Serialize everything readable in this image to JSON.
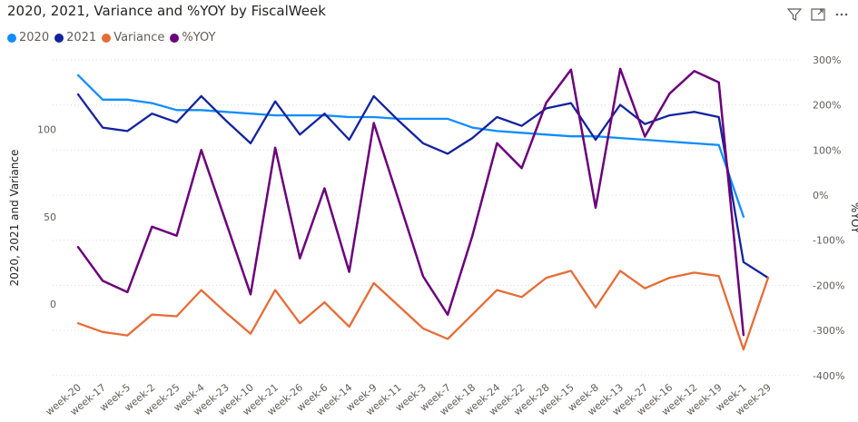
{
  "toolbar": {
    "filter_icon": "filter-icon",
    "focus_icon": "focus-mode-icon",
    "more_icon": "more-options-icon"
  },
  "chart_data": {
    "type": "line",
    "title": "2020, 2021, Variance and %YOY by FiscalWeek",
    "xlabel": "",
    "ylabel": "2020, 2021 and Variance",
    "y2label": "%YOY",
    "ylim": [
      -40,
      135
    ],
    "y2lim": [
      -400,
      300
    ],
    "yticks": [
      0,
      50,
      100
    ],
    "y2ticks": [
      "300%",
      "200%",
      "100%",
      "0%",
      "-100%",
      "-200%",
      "-300%",
      "-400%"
    ],
    "grid": "horizontal dotted",
    "legend_position": "top-left",
    "categories": [
      "week-20",
      "week-17",
      "week-5",
      "week-2",
      "week-25",
      "week-4",
      "week-23",
      "week-10",
      "week-21",
      "week-26",
      "week-6",
      "week-14",
      "week-9",
      "week-11",
      "week-3",
      "week-7",
      "week-18",
      "week-24",
      "week-22",
      "week-28",
      "week-15",
      "week-8",
      "week-13",
      "week-27",
      "week-16",
      "week-12",
      "week-19",
      "week-1",
      "week-29"
    ],
    "series": [
      {
        "name": "2020",
        "axis": "left",
        "color": "#118DFF",
        "values": [
          131,
          117,
          117,
          115,
          111,
          111,
          110,
          109,
          108,
          108,
          108,
          107,
          107,
          106,
          106,
          106,
          101,
          99,
          98,
          97,
          96,
          96,
          95,
          94,
          93,
          92,
          91,
          50,
          null
        ]
      },
      {
        "name": "2021",
        "axis": "left",
        "color": "#12239E",
        "values": [
          120,
          101,
          99,
          109,
          104,
          119,
          105,
          92,
          116,
          97,
          109,
          94,
          119,
          105,
          92,
          86,
          95,
          107,
          102,
          112,
          115,
          94,
          114,
          103,
          108,
          110,
          107,
          24,
          15
        ]
      },
      {
        "name": "Variance",
        "axis": "left",
        "color": "#E66C37",
        "values": [
          -11,
          -16,
          -18,
          -6,
          -7,
          8,
          -5,
          -17,
          8,
          -11,
          1,
          -13,
          12,
          -1,
          -14,
          -20,
          -6,
          8,
          4,
          15,
          19,
          -2,
          19,
          9,
          15,
          18,
          16,
          -26,
          15
        ]
      },
      {
        "name": "%YOY",
        "axis": "right",
        "color": "#6B007B",
        "values": [
          -115,
          -190,
          -215,
          -70,
          -90,
          100,
          -60,
          -220,
          105,
          -140,
          15,
          -170,
          160,
          -10,
          -180,
          -265,
          -90,
          115,
          60,
          205,
          278,
          -28,
          280,
          130,
          225,
          275,
          250,
          -310,
          null
        ]
      }
    ]
  }
}
